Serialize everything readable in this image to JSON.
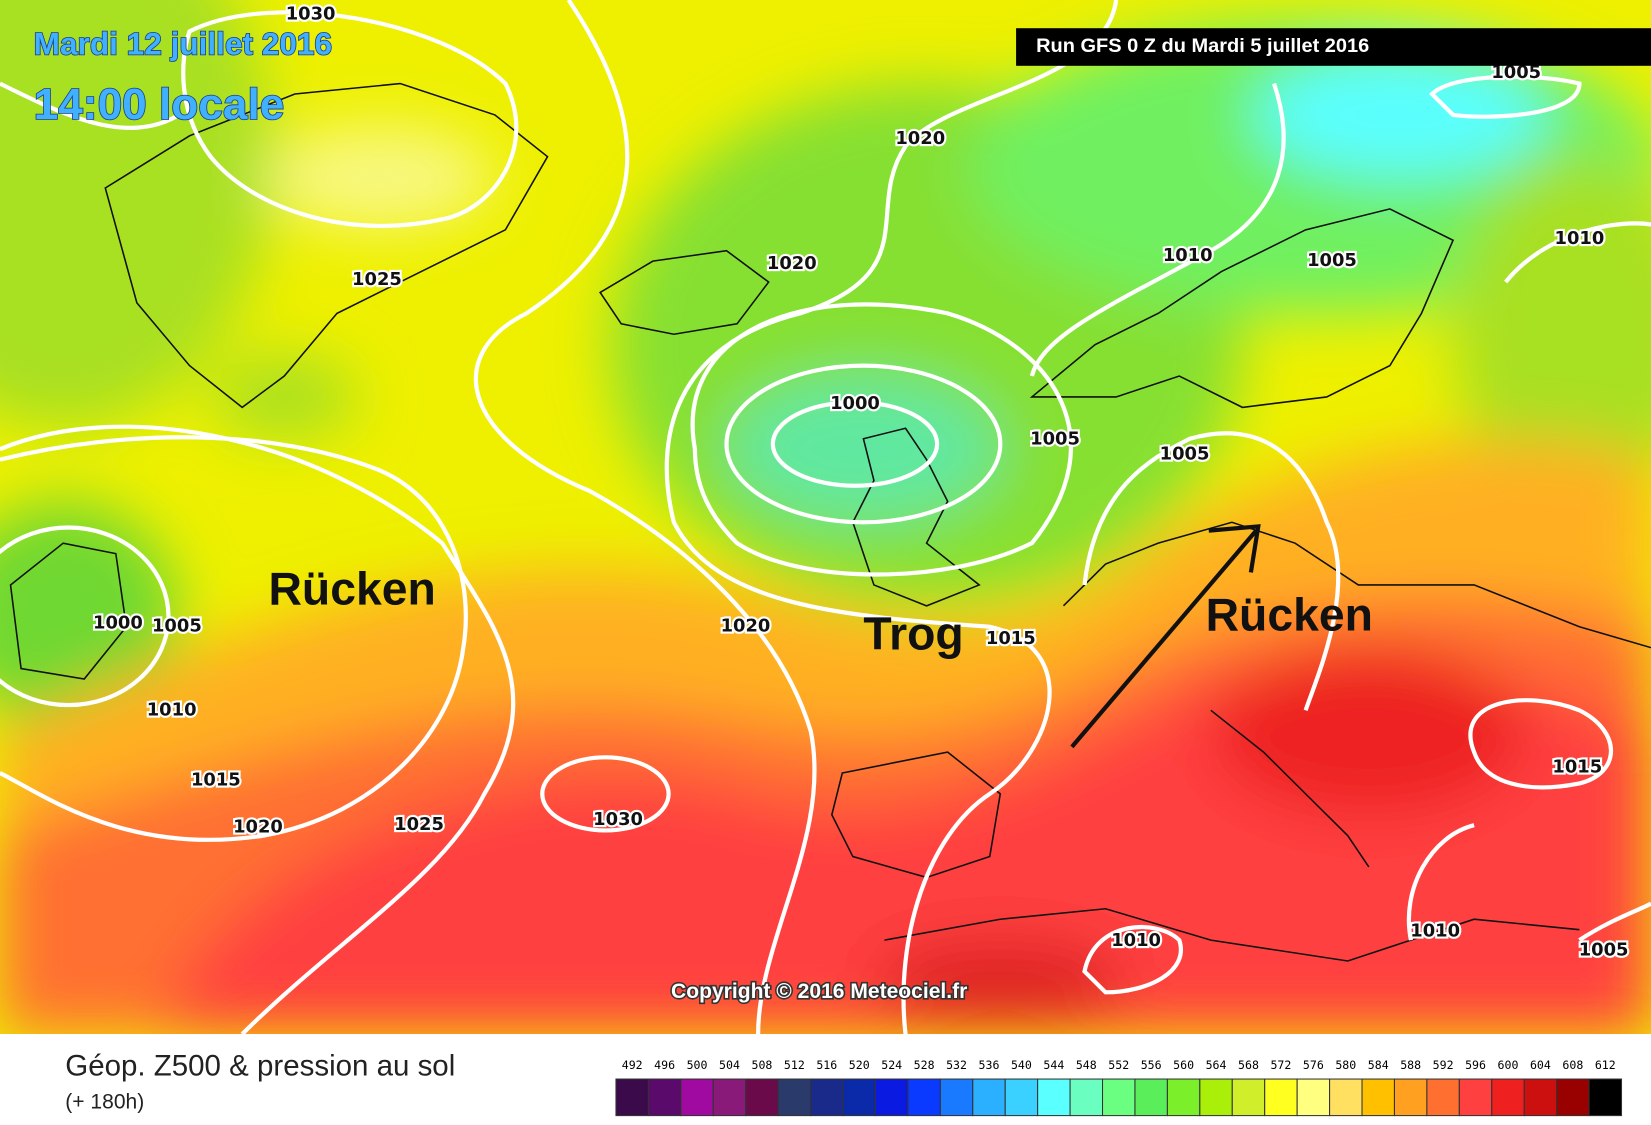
{
  "header": {
    "date": "Mardi 12 juillet 2016",
    "time": "14:00 locale",
    "run": "Run GFS 0 Z du Mardi 5 juillet 2016"
  },
  "isobars": [
    "1030",
    "1020",
    "1005",
    "1020",
    "1025",
    "1010",
    "1005",
    "1010",
    "1000",
    "1005",
    "1005",
    "1000",
    "1005",
    "1020",
    "1015",
    "1010",
    "1015",
    "1020",
    "1025",
    "1030",
    "1015",
    "1010",
    "1005",
    "1010"
  ],
  "annotations": [
    "Rücken",
    "Trog",
    "Rücken"
  ],
  "copyright": "Copyright © 2016 Meteociel.fr",
  "legend": {
    "title": "Géop. Z500 & pression au sol",
    "subtitle": "(+ 180h)",
    "ticks": [
      492,
      496,
      500,
      504,
      508,
      512,
      516,
      520,
      524,
      528,
      532,
      536,
      540,
      544,
      548,
      552,
      556,
      560,
      564,
      568,
      572,
      576,
      580,
      584,
      588,
      592,
      596,
      600,
      604,
      608,
      612
    ],
    "colors": [
      "#3a0a4a",
      "#5a0a6a",
      "#a00aa0",
      "#8a1a7a",
      "#6a0a4a",
      "#2a3a6a",
      "#1a2a8a",
      "#0a2aaa",
      "#0a1ae0",
      "#0a3aff",
      "#1a7aff",
      "#2ab0ff",
      "#3ad0ff",
      "#5affff",
      "#6affc0",
      "#6aff80",
      "#5aef5a",
      "#7aef2a",
      "#aaef0a",
      "#d0ef2a",
      "#ffff20",
      "#ffff80",
      "#ffe060",
      "#ffc000",
      "#ffa020",
      "#ff7030",
      "#ff4040",
      "#ee2020",
      "#cc1010",
      "#990000",
      "#000000"
    ]
  }
}
